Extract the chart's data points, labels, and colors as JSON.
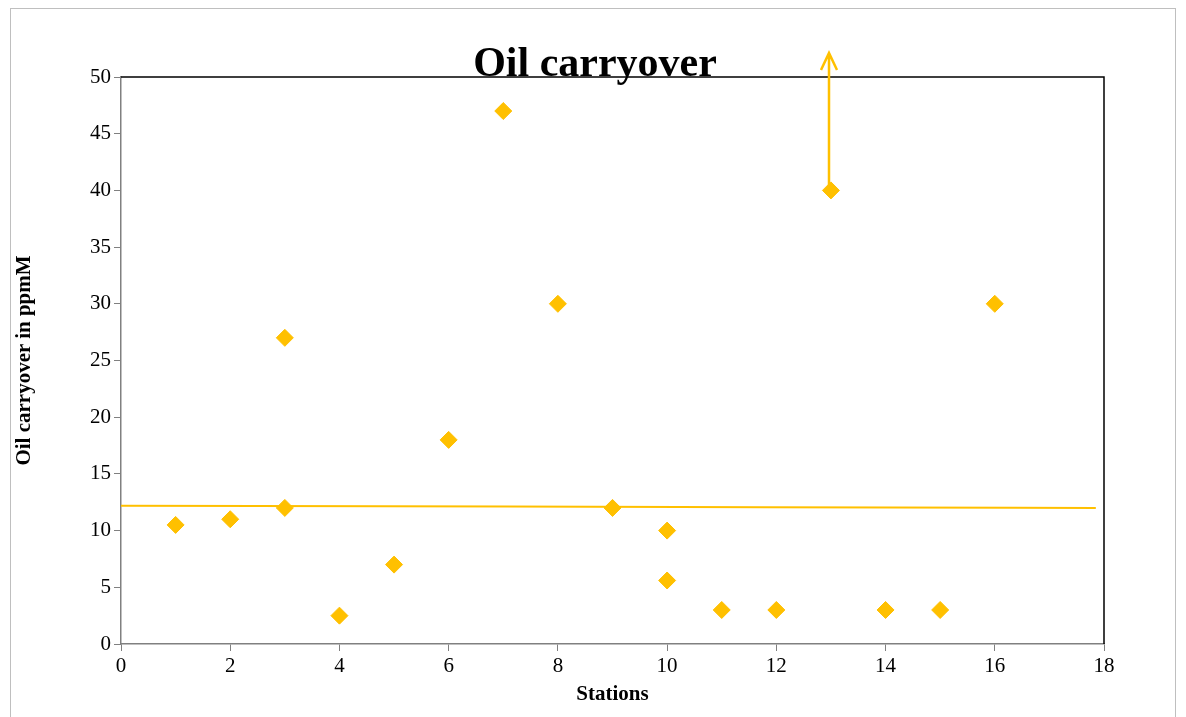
{
  "chart_data": {
    "type": "scatter",
    "title": "Oil carryover",
    "xlabel": "Stations",
    "ylabel": "Oil carryover in ppmM",
    "series": [
      {
        "color": "#ffc000",
        "x": [
          1,
          2,
          3,
          3,
          4,
          5,
          6,
          7,
          8,
          9,
          10,
          10,
          11,
          12,
          13,
          14,
          15,
          16
        ],
        "values": [
          10.5,
          11,
          27,
          12,
          2.5,
          7,
          18,
          47,
          30,
          12,
          10,
          5.6,
          3,
          3,
          40,
          3,
          3,
          30
        ]
      },
      {
        "type": "line",
        "color": "#ffc000",
        "marker": "none",
        "x": [
          0,
          17.85
        ],
        "values": [
          12.2,
          12.0
        ]
      }
    ],
    "xlim": [
      0,
      18
    ],
    "xticks": [
      0,
      2,
      4,
      6,
      8,
      10,
      12,
      14,
      16,
      18
    ],
    "ylim": [
      0,
      50
    ],
    "yticks": [
      0,
      5,
      10,
      15,
      20,
      25,
      30,
      35,
      40,
      45,
      50
    ],
    "grid": false,
    "legend": false,
    "marker": "diamond"
  }
}
